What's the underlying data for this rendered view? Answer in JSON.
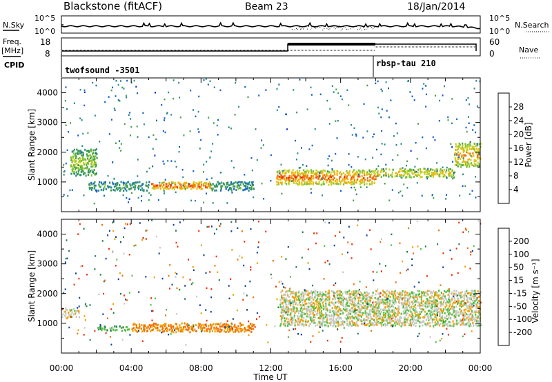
{
  "header": {
    "station": "Blackstone (fitACF)",
    "beam": "Beam 23",
    "date": "18/Jan/2014"
  },
  "top_panel": {
    "left_label": "N.Sky",
    "right_label": "N.Search",
    "tick_top": "10^5",
    "tick_bottom": "10^0"
  },
  "freq_panel": {
    "label_line1": "Freq.",
    "label_line2": "[MHz]",
    "right_label": "Nave",
    "left_ticks": [
      "18",
      "8"
    ],
    "right_ticks": [
      "60",
      "0"
    ]
  },
  "cpid": {
    "label": "CPID",
    "programs": [
      {
        "name": "twofsound -3501",
        "start_hour": 0
      },
      {
        "name": "rbsp-tau 210",
        "start_hour": 18
      }
    ]
  },
  "x_axis": {
    "label": "Time UT",
    "ticks": [
      "00:00",
      "04:00",
      "08:00",
      "12:00",
      "16:00",
      "20:00",
      "00:00"
    ]
  },
  "power_panel": {
    "ylabel": "Slant Range [km]",
    "yticks": [
      "1000",
      "2000",
      "3000",
      "4000"
    ],
    "colorbar_label": "Power [dB]",
    "colorbar_ticks": [
      "28",
      "24",
      "20",
      "16",
      "12",
      "8",
      "4"
    ]
  },
  "velocity_panel": {
    "ylabel": "Slant Range [km]",
    "yticks": [
      "1000",
      "2000",
      "3000",
      "4000"
    ],
    "colorbar_label": "Velocity [m s⁻¹]",
    "colorbar_ticks": [
      "200",
      "100",
      "50",
      "15",
      "-15",
      "-50",
      "-100",
      "-200"
    ]
  },
  "chart_data": [
    {
      "type": "heatmap",
      "title": "Power",
      "xlabel": "Time UT",
      "ylabel": "Slant Range [km]",
      "xlim": [
        0,
        24
      ],
      "ylim": [
        0,
        4500
      ],
      "colorscale": {
        "label": "Power [dB]",
        "range": [
          0,
          32
        ],
        "colors": [
          "#1030d0",
          "#1060c8",
          "#2a8a8a",
          "#46a048",
          "#7cc030",
          "#c8d020",
          "#f0b000",
          "#f07000",
          "#f03000",
          "#e00000"
        ]
      },
      "features": [
        {
          "desc": "main echo band",
          "time": [
            0.5,
            2
          ],
          "range": [
            1200,
            2100
          ],
          "power_db": 14
        },
        {
          "desc": "main echo band",
          "time": [
            1.5,
            5
          ],
          "range": [
            700,
            1000
          ],
          "power_db": 10
        },
        {
          "desc": "strong echo",
          "time": [
            5,
            8.5
          ],
          "range": [
            750,
            1000
          ],
          "power_db": 24
        },
        {
          "desc": "main echo band",
          "time": [
            8.5,
            11
          ],
          "range": [
            700,
            1000
          ],
          "power_db": 10
        },
        {
          "desc": "strong echo",
          "time": [
            12.3,
            18
          ],
          "range": [
            900,
            1400
          ],
          "power_db": 22
        },
        {
          "desc": "echo band",
          "time": [
            18,
            22.5
          ],
          "range": [
            1150,
            1450
          ],
          "power_db": 18
        },
        {
          "desc": "rising echo",
          "time": [
            22.5,
            24
          ],
          "range": [
            1500,
            2300
          ],
          "power_db": 20
        }
      ]
    },
    {
      "type": "heatmap",
      "title": "Velocity",
      "xlabel": "Time UT",
      "ylabel": "Slant Range [km]",
      "xlim": [
        0,
        24
      ],
      "ylim": [
        0,
        4500
      ],
      "colorscale": {
        "label": "Velocity [m s⁻¹]",
        "range": [
          -250,
          250
        ],
        "colors": [
          "#e00000",
          "#f03000",
          "#f07000",
          "#f0a000",
          "#c8c8c0",
          "#50c040",
          "#208040",
          "#1040a0",
          "#1020c0"
        ]
      },
      "features": [
        {
          "desc": "ground scatter",
          "time": [
            0,
            1
          ],
          "range": [
            1200,
            1500
          ],
          "velocity": 0
        },
        {
          "desc": "flow",
          "time": [
            4,
            11
          ],
          "range": [
            700,
            1000
          ],
          "velocity": -60
        },
        {
          "desc": "flow",
          "time": [
            2,
            4
          ],
          "range": [
            750,
            900
          ],
          "velocity": 40
        },
        {
          "desc": "ground scatter",
          "time": [
            12.5,
            24
          ],
          "range": [
            900,
            2100
          ],
          "velocity": 0
        }
      ]
    }
  ]
}
